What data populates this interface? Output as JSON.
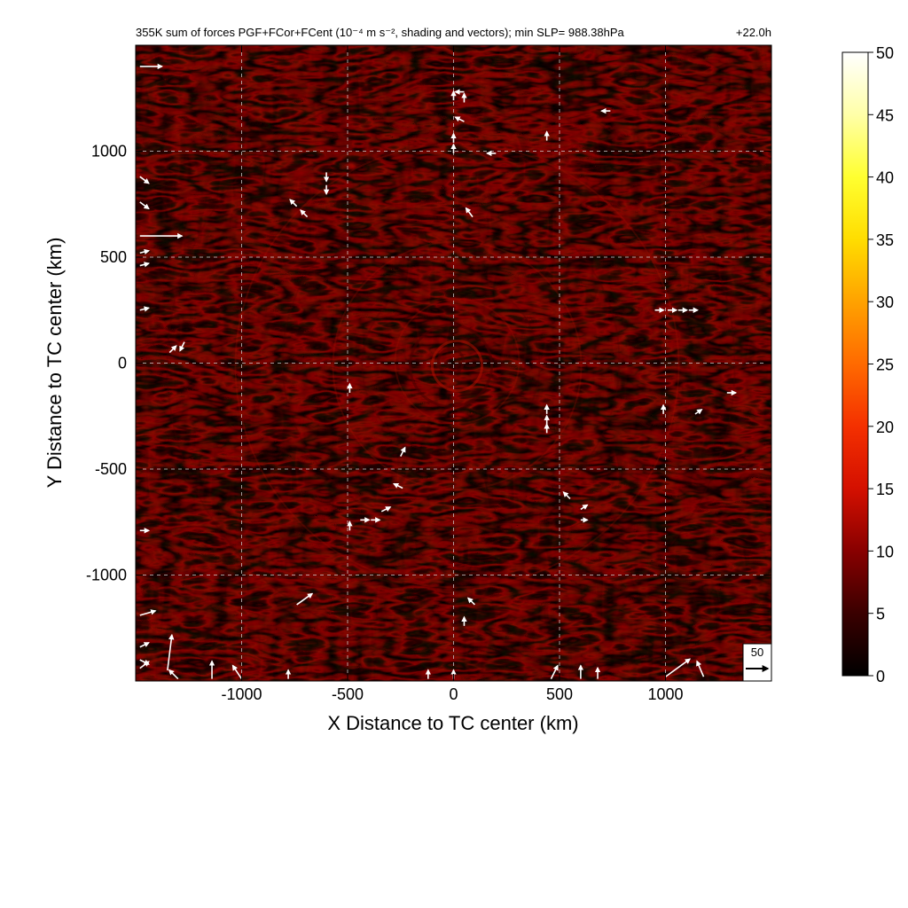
{
  "chart_data": {
    "type": "heatmap",
    "title": "355K sum of forces PGF+FCor+FCent (10⁻⁴ m s⁻², shading and vectors); min SLP= 988.38hPa",
    "time_label": "+22.0h",
    "xlabel": "X Distance to TC center (km)",
    "ylabel": "Y Distance to TC center (km)",
    "xlim": [
      -1500,
      1500
    ],
    "ylim": [
      -1500,
      1500
    ],
    "xticks": [
      -1000,
      -500,
      0,
      500,
      1000
    ],
    "yticks": [
      -1000,
      -500,
      0,
      500,
      1000
    ],
    "grid": true,
    "colorbar": {
      "range": [
        0,
        50
      ],
      "ticks": [
        0,
        5,
        10,
        15,
        20,
        25,
        30,
        35,
        40,
        45,
        50
      ],
      "colors": [
        "#000000",
        "#3a0000",
        "#6e0000",
        "#a00000",
        "#cc1000",
        "#ee3000",
        "#ff6000",
        "#ff9000",
        "#ffc000",
        "#ffe600",
        "#ffff60",
        "#ffffff"
      ]
    },
    "reference_vector": {
      "value": "50"
    },
    "field_colors": {
      "dark": "#080000",
      "mid": "#4a0000",
      "bright": "#b01000"
    },
    "vectors": [
      {
        "x": -1480,
        "y": 1400,
        "u": 50,
        "v": 0
      },
      {
        "x": -1480,
        "y": 600,
        "u": 95,
        "v": 0
      },
      {
        "x": -1480,
        "y": 880,
        "u": 20,
        "v": -15
      },
      {
        "x": -1480,
        "y": 760,
        "u": 20,
        "v": -15
      },
      {
        "x": -1480,
        "y": 520,
        "u": 20,
        "v": 5
      },
      {
        "x": -1480,
        "y": 460,
        "u": 20,
        "v": 5
      },
      {
        "x": -1480,
        "y": 250,
        "u": 20,
        "v": 5
      },
      {
        "x": -1480,
        "y": -790,
        "u": 20,
        "v": 0
      },
      {
        "x": -1480,
        "y": -1190,
        "u": 35,
        "v": 10
      },
      {
        "x": -1480,
        "y": -1340,
        "u": 20,
        "v": 10
      },
      {
        "x": -1480,
        "y": -1400,
        "u": 20,
        "v": -10
      },
      {
        "x": -1480,
        "y": -1440,
        "u": 20,
        "v": 15
      },
      {
        "x": -1350,
        "y": -1450,
        "u": 10,
        "v": 80
      },
      {
        "x": -1300,
        "y": -1490,
        "u": -20,
        "v": 20
      },
      {
        "x": -1140,
        "y": -1490,
        "u": 0,
        "v": 40
      },
      {
        "x": -1000,
        "y": -1490,
        "u": -20,
        "v": 30
      },
      {
        "x": -780,
        "y": -1490,
        "u": 0,
        "v": 20
      },
      {
        "x": -120,
        "y": -1490,
        "u": 0,
        "v": 20
      },
      {
        "x": 0,
        "y": -1490,
        "u": 0,
        "v": 20
      },
      {
        "x": 460,
        "y": -1490,
        "u": 15,
        "v": 30
      },
      {
        "x": 600,
        "y": -1490,
        "u": 0,
        "v": 30
      },
      {
        "x": 680,
        "y": -1490,
        "u": 0,
        "v": 25
      },
      {
        "x": 1000,
        "y": -1480,
        "u": 55,
        "v": 40
      },
      {
        "x": 1180,
        "y": -1480,
        "u": -15,
        "v": 35
      },
      {
        "x": -600,
        "y": 900,
        "u": 0,
        "v": -20
      },
      {
        "x": -600,
        "y": 840,
        "u": 0,
        "v": -20
      },
      {
        "x": -740,
        "y": 740,
        "u": -15,
        "v": 15
      },
      {
        "x": -690,
        "y": 690,
        "u": -15,
        "v": 15
      },
      {
        "x": 0,
        "y": 1240,
        "u": 0,
        "v": 20
      },
      {
        "x": 50,
        "y": 1280,
        "u": -20,
        "v": 0
      },
      {
        "x": 50,
        "y": 1230,
        "u": 0,
        "v": 20
      },
      {
        "x": 50,
        "y": 1140,
        "u": -20,
        "v": 10
      },
      {
        "x": 0,
        "y": 1040,
        "u": 0,
        "v": 20
      },
      {
        "x": 0,
        "y": 990,
        "u": 0,
        "v": 20
      },
      {
        "x": 200,
        "y": 990,
        "u": -20,
        "v": 0
      },
      {
        "x": 440,
        "y": 1050,
        "u": 0,
        "v": 20
      },
      {
        "x": 740,
        "y": 1190,
        "u": -20,
        "v": 0
      },
      {
        "x": 90,
        "y": 690,
        "u": -15,
        "v": 20
      },
      {
        "x": 950,
        "y": 250,
        "u": 20,
        "v": 0
      },
      {
        "x": 1010,
        "y": 250,
        "u": 20,
        "v": 0
      },
      {
        "x": 1060,
        "y": 250,
        "u": 20,
        "v": 0
      },
      {
        "x": 1110,
        "y": 250,
        "u": 20,
        "v": 0
      },
      {
        "x": 1290,
        "y": -140,
        "u": 20,
        "v": 0
      },
      {
        "x": 990,
        "y": -240,
        "u": 0,
        "v": 20
      },
      {
        "x": 1140,
        "y": -240,
        "u": 15,
        "v": 10
      },
      {
        "x": -1270,
        "y": 100,
        "u": -10,
        "v": -20
      },
      {
        "x": -1340,
        "y": 50,
        "u": 15,
        "v": 15
      },
      {
        "x": -490,
        "y": -140,
        "u": 0,
        "v": 20
      },
      {
        "x": 440,
        "y": -240,
        "u": 0,
        "v": 20
      },
      {
        "x": 440,
        "y": -290,
        "u": 0,
        "v": 20
      },
      {
        "x": 440,
        "y": -330,
        "u": 0,
        "v": 20
      },
      {
        "x": -250,
        "y": -440,
        "u": 10,
        "v": 20
      },
      {
        "x": -240,
        "y": -590,
        "u": -20,
        "v": 10
      },
      {
        "x": -340,
        "y": -700,
        "u": 20,
        "v": 10
      },
      {
        "x": -390,
        "y": -740,
        "u": 20,
        "v": 0
      },
      {
        "x": -440,
        "y": -740,
        "u": 20,
        "v": 0
      },
      {
        "x": -490,
        "y": -790,
        "u": 0,
        "v": 20
      },
      {
        "x": 550,
        "y": -640,
        "u": -15,
        "v": 15
      },
      {
        "x": 600,
        "y": -690,
        "u": 15,
        "v": 10
      },
      {
        "x": 600,
        "y": -740,
        "u": 15,
        "v": 0
      },
      {
        "x": 100,
        "y": -1140,
        "u": -15,
        "v": 15
      },
      {
        "x": 50,
        "y": -1240,
        "u": 0,
        "v": 20
      },
      {
        "x": -740,
        "y": -1140,
        "u": 35,
        "v": 25
      }
    ]
  }
}
